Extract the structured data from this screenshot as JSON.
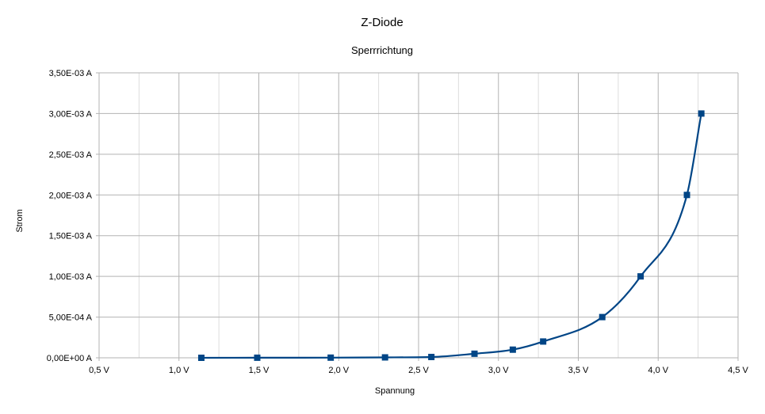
{
  "chart_data": {
    "type": "line",
    "title": "Z-Diode",
    "subtitle": "Sperrrichtung",
    "xlabel": "Spannung",
    "ylabel": "Strom",
    "xlim": [
      0.5,
      4.5
    ],
    "ylim": [
      0,
      0.0035
    ],
    "x_ticks": [
      0.5,
      1.0,
      1.5,
      2.0,
      2.5,
      3.0,
      3.5,
      4.0,
      4.5
    ],
    "x_tick_labels": [
      "0,5 V",
      "1,0 V",
      "1,5 V",
      "2,0 V",
      "2,5 V",
      "3,0 V",
      "3,5 V",
      "4,0 V",
      "4,5 V"
    ],
    "y_ticks": [
      0,
      0.0005,
      0.001,
      0.0015,
      0.002,
      0.0025,
      0.003,
      0.0035
    ],
    "y_tick_labels": [
      "0,00E+00 A",
      "5,00E-04 A",
      "1,00E-03 A",
      "1,50E-03 A",
      "2,00E-03 A",
      "2,50E-03 A",
      "3,00E-03 A",
      "3,50E-03 A"
    ],
    "grid": true,
    "x_minor_step": 0.25,
    "smooth": true,
    "marker": "square",
    "series": [
      {
        "x": [
          1.14,
          1.49,
          1.95,
          2.29,
          2.58,
          2.85,
          3.09,
          3.28,
          3.65,
          3.89,
          4.18,
          4.27
        ],
        "y": [
          0,
          1e-06,
          2e-06,
          5e-06,
          1e-05,
          5e-05,
          0.0001,
          0.0002,
          0.0005,
          0.001,
          0.002,
          0.003
        ],
        "color": "#004586"
      }
    ]
  }
}
